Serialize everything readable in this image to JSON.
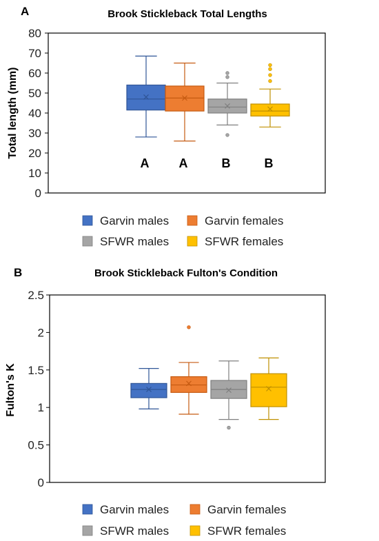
{
  "chart_data": [
    {
      "type": "box",
      "panel_label": "A",
      "title": "Brook Stickleback Total Lengths",
      "ylabel": "Total length (mm)",
      "ylim": [
        0,
        80
      ],
      "yticks": [
        0,
        10,
        20,
        30,
        40,
        50,
        60,
        70,
        80
      ],
      "grid": false,
      "legend_position": "bottom",
      "series": [
        {
          "name": "Garvin males",
          "color": "#4472C4",
          "stroke": "#2F5597",
          "min": 28,
          "q1": 41.5,
          "median": 47,
          "q3": 54,
          "max": 68.5,
          "mean": 48,
          "outliers": [],
          "group_letter": "A"
        },
        {
          "name": "Garvin females",
          "color": "#ED7D31",
          "stroke": "#C55A11",
          "min": 26,
          "q1": 41,
          "median": 47.5,
          "q3": 53.5,
          "max": 65,
          "mean": 47.5,
          "outliers": [],
          "group_letter": "A"
        },
        {
          "name": "SFWR males",
          "color": "#A5A5A5",
          "stroke": "#7F7F7F",
          "min": 34,
          "q1": 40,
          "median": 43,
          "q3": 47,
          "max": 55,
          "mean": 43.5,
          "outliers": [
            29,
            58,
            60
          ],
          "group_letter": "B"
        },
        {
          "name": "SFWR females",
          "color": "#FFC000",
          "stroke": "#BF9000",
          "min": 33,
          "q1": 38.5,
          "median": 41,
          "q3": 44.5,
          "max": 52,
          "mean": 42,
          "outliers": [
            56,
            59,
            62,
            64
          ],
          "group_letter": "B"
        }
      ]
    },
    {
      "type": "box",
      "panel_label": "B",
      "title": "Brook Stickleback Fulton's Condition",
      "ylabel": "Fulton's K",
      "ylim": [
        0,
        2.5
      ],
      "yticks": [
        0,
        0.5,
        1,
        1.5,
        2,
        2.5
      ],
      "grid": false,
      "legend_position": "bottom",
      "series": [
        {
          "name": "Garvin males",
          "color": "#4472C4",
          "stroke": "#2F5597",
          "min": 0.98,
          "q1": 1.13,
          "median": 1.24,
          "q3": 1.32,
          "max": 1.52,
          "mean": 1.24,
          "outliers": []
        },
        {
          "name": "Garvin females",
          "color": "#ED7D31",
          "stroke": "#C55A11",
          "min": 0.91,
          "q1": 1.2,
          "median": 1.3,
          "q3": 1.41,
          "max": 1.6,
          "mean": 1.32,
          "outliers": [
            2.07
          ]
        },
        {
          "name": "SFWR males",
          "color": "#A5A5A5",
          "stroke": "#7F7F7F",
          "min": 0.84,
          "q1": 1.12,
          "median": 1.24,
          "q3": 1.36,
          "max": 1.62,
          "mean": 1.23,
          "outliers": [
            0.73
          ]
        },
        {
          "name": "SFWR females",
          "color": "#FFC000",
          "stroke": "#BF9000",
          "min": 0.84,
          "q1": 1.01,
          "median": 1.27,
          "q3": 1.45,
          "max": 1.66,
          "mean": 1.25,
          "outliers": []
        }
      ]
    }
  ]
}
